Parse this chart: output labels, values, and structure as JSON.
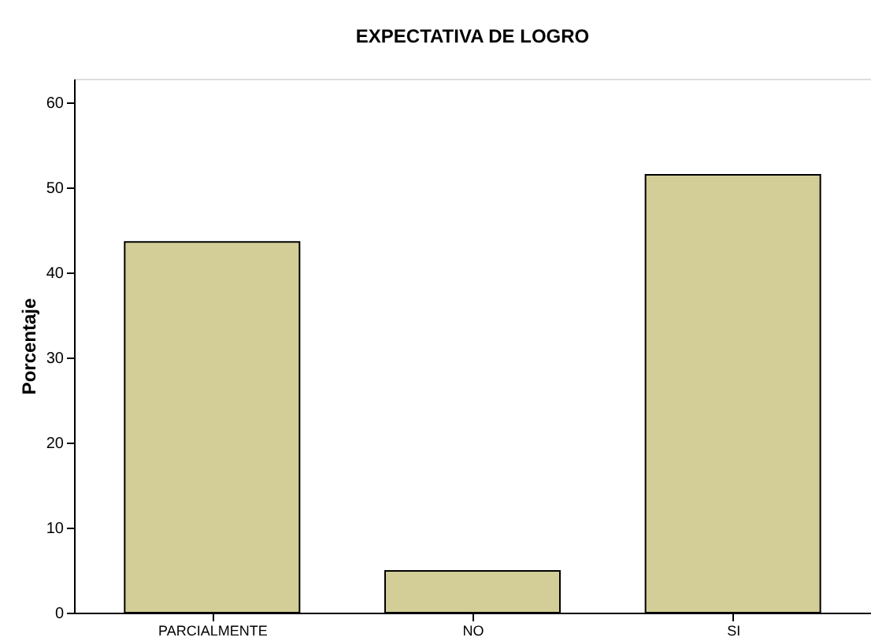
{
  "chart_data": {
    "type": "bar",
    "title": "EXPECTATIVA DE LOGRO",
    "ylabel": "Porcentaje",
    "categories": [
      "PARCIALMENTE",
      "NO",
      "SI"
    ],
    "values": [
      43.6,
      4.9,
      51.5
    ],
    "color": "#d3ce97",
    "ylim": [
      0,
      62.8
    ],
    "yticks": [
      0,
      10,
      20,
      30,
      40,
      50,
      60
    ],
    "grid": false
  }
}
